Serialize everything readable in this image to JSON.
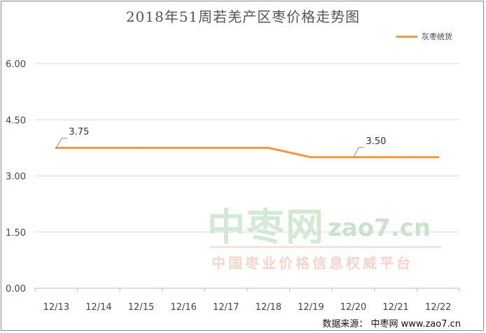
{
  "chart_data": {
    "type": "line",
    "title": "2018年51周若羌产区枣价格走势图",
    "categories": [
      "12/13",
      "12/14",
      "12/15",
      "12/16",
      "12/17",
      "12/18",
      "12/19",
      "12/20",
      "12/21",
      "12/22"
    ],
    "series": [
      {
        "name": "灰枣统货",
        "values": [
          3.75,
          3.75,
          3.75,
          3.75,
          3.75,
          3.75,
          3.5,
          3.5,
          3.5,
          3.5
        ],
        "color": "#f39743"
      }
    ],
    "yticks": [
      "0.00",
      "1.50",
      "3.00",
      "4.50",
      "6.00"
    ],
    "ylim": [
      0,
      6
    ],
    "grid": true,
    "legend": "top-right",
    "data_labels": [
      {
        "index": 0,
        "text": "3.75"
      },
      {
        "index": 7,
        "text": "3.50"
      }
    ]
  },
  "watermark": {
    "main": "中枣网",
    "url": "zao7.cn",
    "sub": "中国枣业价格信息权威平台"
  },
  "source": "数据来源：  中枣网 www.zao7.cn"
}
